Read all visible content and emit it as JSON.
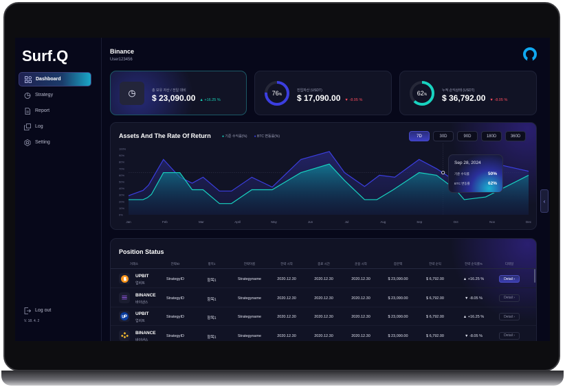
{
  "app": {
    "logo": "Surf.Q",
    "version": "V. 18. 4. 2"
  },
  "sidebar": {
    "items": [
      {
        "label": "Dashboard",
        "icon": "grid-icon",
        "active": true
      },
      {
        "label": "Strategy",
        "icon": "pie-icon"
      },
      {
        "label": "Report",
        "icon": "document-icon"
      },
      {
        "label": "Log",
        "icon": "copy-icon"
      },
      {
        "label": "Setting",
        "icon": "hexagon-icon"
      }
    ],
    "logout": "Log out"
  },
  "header": {
    "title": "Binance",
    "user": "User123456"
  },
  "stats": [
    {
      "label": "총 보유 자산 / 전일 대비",
      "value": "$ 23,090.00",
      "change": "+16.25 %",
      "dir": "up"
    },
    {
      "label": "진입자산 (USDT)",
      "value": "$ 17,090.00",
      "change": "-8.05 %",
      "dir": "down",
      "gauge": "76",
      "gauge_unit": "%",
      "gauge_color": "#3b3ee0"
    },
    {
      "label": "누적 손익상태 (USDT)",
      "value": "$ 36,792.00",
      "change": "-8.05 %",
      "dir": "down",
      "gauge": "62",
      "gauge_unit": "%",
      "gauge_color": "#18d3c0"
    }
  ],
  "chart": {
    "title": "Assets And The Rate Of Return",
    "ranges": [
      "7D",
      "30D",
      "90D",
      "180D",
      "360D"
    ],
    "active_range": "7D",
    "tooltip": {
      "date": "Sep 28, 2024",
      "rows": [
        {
          "label": "기준 수익률",
          "value": "50%"
        },
        {
          "label": "BTC 변동률",
          "value": "62%"
        }
      ]
    }
  },
  "chart_data": {
    "type": "area",
    "ylim": [
      0,
      100
    ],
    "grid": false,
    "legend": "top-left",
    "yticks": [
      "0%",
      "10%",
      "20%",
      "30%",
      "40%",
      "50%",
      "60%",
      "70%",
      "80%",
      "90%",
      "100%"
    ],
    "categories": [
      "Jan",
      "Feb",
      "Mar",
      "April",
      "May",
      "Jun",
      "Jul",
      "Aug",
      "Sep",
      "Oct",
      "Nov",
      "Dec"
    ],
    "series": [
      {
        "name": "기준 수익률(%)",
        "color": "#18d3c0",
        "x": [
          0,
          0.4,
          0.52,
          0.63,
          0.96,
          1.41,
          1.75,
          2.05,
          2.5,
          2.83,
          3.39,
          3.95,
          4.74,
          5.52,
          5.94,
          6.49,
          6.83,
          7.28,
          7.99,
          8.47,
          9.0,
          9.23,
          9.82,
          11
        ],
        "y": [
          23,
          23,
          26,
          31,
          64,
          64,
          38,
          38,
          17,
          17,
          38,
          38,
          64,
          77,
          52,
          23,
          23,
          38,
          64,
          60,
          38,
          23,
          27,
          60
        ]
      },
      {
        "name": "BTC 변동률(%)",
        "color": "#3b3ee0",
        "x": [
          0,
          0.4,
          0.55,
          0.96,
          1.41,
          1.75,
          2.05,
          2.5,
          2.83,
          3.39,
          3.95,
          4.74,
          5.52,
          5.94,
          6.49,
          6.9,
          7.32,
          7.99,
          8.47,
          8.83,
          9.3,
          9.8,
          10.12,
          11
        ],
        "y": [
          29,
          37,
          45,
          84,
          57,
          48,
          57,
          36,
          36,
          57,
          42,
          84,
          96,
          64,
          43,
          60,
          57,
          84,
          70,
          57,
          52,
          68,
          77,
          66
        ]
      }
    ]
  },
  "positions": {
    "title": "Position Status",
    "headers": [
      "거래소",
      "전략ID",
      "항목1",
      "전략이름",
      "전략 시작",
      "종료 시간",
      "운용 시작",
      "증분액",
      "전략 순익",
      "전략 순익률%",
      "디테일"
    ],
    "rows": [
      {
        "exchange": "UPBIT",
        "sub": "업비트",
        "icon": "bitcoin-icon",
        "id": "StrategyID",
        "item": "항목1",
        "name": "Strategyname",
        "start": "2020.12.30",
        "end": "2020.12.30",
        "run": "2020.12.30",
        "amount": "$ 23,090.00",
        "profit": "$ 6,792.00",
        "rate": "+16.25 %",
        "dir": "up",
        "detail": "Detail"
      },
      {
        "exchange": "BINANCE",
        "sub": "바이낸스",
        "icon": "solana-icon",
        "id": "StrategyID",
        "item": "항목1",
        "name": "Strategyname",
        "start": "2020.12.30",
        "end": "2020.12.30",
        "run": "2020.12.30",
        "amount": "$ 23,090.00",
        "profit": "$ 6,792.00",
        "rate": "-8.05 %",
        "dir": "down",
        "detail": "Detail"
      },
      {
        "exchange": "UPBIT",
        "sub": "업비트",
        "icon": "upbit-icon",
        "id": "StrategyID",
        "item": "항목1",
        "name": "Strategyname",
        "start": "2020.12.30",
        "end": "2020.12.30",
        "run": "2020.12.30",
        "amount": "$ 23,090.00",
        "profit": "$ 6,792.00",
        "rate": "+16.25 %",
        "dir": "up",
        "detail": "Detail"
      },
      {
        "exchange": "BINANCE",
        "sub": "바이낸스",
        "icon": "binance-icon",
        "id": "StrategyID",
        "item": "항목1",
        "name": "Strategyname",
        "start": "2020.12.30",
        "end": "2020.12.30",
        "run": "2020.12.30",
        "amount": "$ 23,090.00",
        "profit": "$ 6,792.00",
        "rate": "-8.05 %",
        "dir": "down",
        "detail": "Detail"
      }
    ]
  }
}
